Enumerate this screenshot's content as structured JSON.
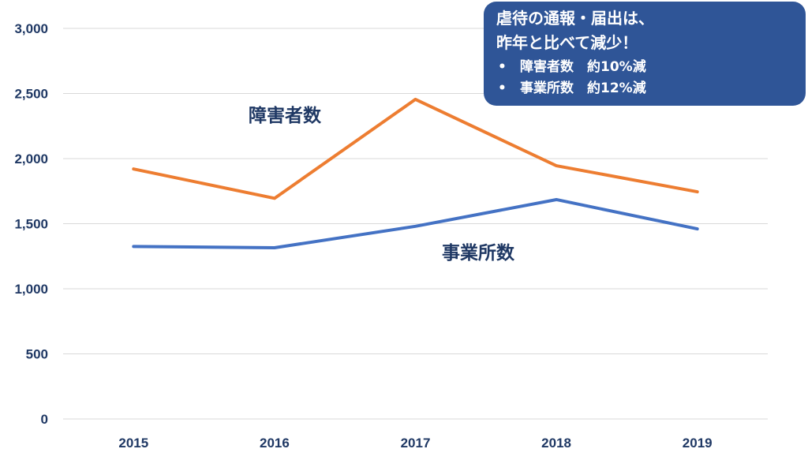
{
  "chart_data": {
    "type": "line",
    "categories": [
      "2015",
      "2016",
      "2017",
      "2018",
      "2019"
    ],
    "series": [
      {
        "name": "障害者数",
        "values": [
          1920,
          1695,
          2455,
          1945,
          1745
        ],
        "color": "#ed7d31"
      },
      {
        "name": "事業所数",
        "values": [
          1325,
          1315,
          1480,
          1685,
          1460
        ],
        "color": "#4472c4"
      }
    ],
    "ylim": [
      0,
      3000
    ],
    "yticks": [
      0,
      500,
      1000,
      1500,
      2000,
      2500,
      3000
    ],
    "ytick_labels": [
      "0",
      "500",
      "1,000",
      "1,500",
      "2,000",
      "2,500",
      "3,000"
    ],
    "grid": true,
    "legend": "inline labels",
    "title": "",
    "xlabel": "",
    "ylabel": ""
  },
  "callout": {
    "line1": "虐待の通報・届出は、",
    "line2": "昨年と比べて減少！",
    "bullet": "•",
    "items": [
      "障害者数　約10%減",
      "事業所数　約12%減"
    ],
    "background": "#2f5597"
  },
  "colors": {
    "axis_text": "#1f3864",
    "grid": "#d9d9d9"
  }
}
